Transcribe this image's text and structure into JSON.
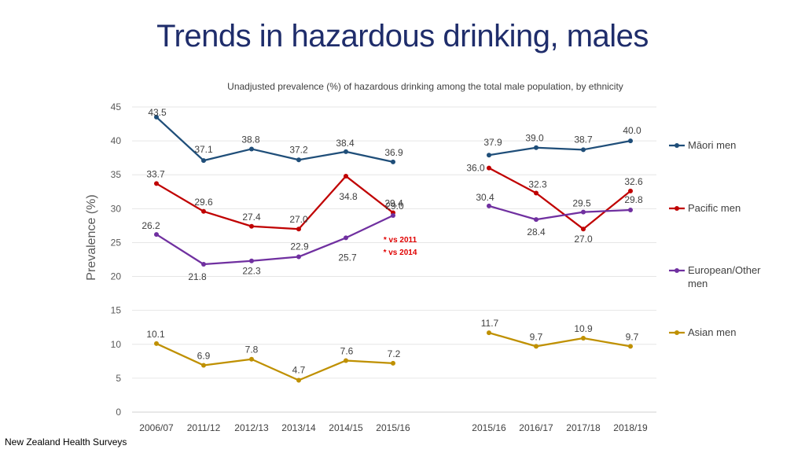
{
  "page_title": "Trends in hazardous drinking, males",
  "footer": "New Zealand Health Surveys",
  "chart_data": {
    "type": "line",
    "title": "Unadjusted prevalence (%) of hazardous drinking among the total male population, by ethnicity",
    "ylabel": "Prevalence (%)",
    "xlabel": "",
    "ylim": [
      0,
      45
    ],
    "yticks": [
      0,
      5,
      10,
      15,
      20,
      25,
      30,
      35,
      40,
      45
    ],
    "grid": true,
    "categories": [
      "2006/07",
      "2011/12",
      "2012/13",
      "2013/14",
      "2014/15",
      "2015/16",
      "2015/16",
      "2016/17",
      "2017/18",
      "2018/19"
    ],
    "segments": [
      [
        0,
        5
      ],
      [
        6,
        9
      ]
    ],
    "series": [
      {
        "name": "Māori men",
        "color": "#1f4e79",
        "values": [
          43.5,
          37.1,
          38.8,
          37.2,
          38.4,
          36.9,
          37.9,
          39.0,
          38.7,
          40.0
        ],
        "labels": [
          "43.5",
          "37.1",
          "38.8",
          "37.2",
          "38.4",
          "36.9",
          "37.9",
          "39.0",
          "38.7",
          "40.0"
        ]
      },
      {
        "name": "Pacific men",
        "color": "#c00000",
        "values": [
          33.7,
          29.6,
          27.4,
          27.0,
          34.8,
          29.4,
          36.0,
          32.3,
          27.0,
          32.6
        ],
        "labels": [
          "33.7",
          "29.6",
          "27.4",
          "27.0",
          "34.8",
          "29.4",
          "36.0",
          "32.3",
          "27.0",
          "32.6"
        ]
      },
      {
        "name": "European/Other men",
        "color": "#7030a0",
        "values": [
          26.2,
          21.8,
          22.3,
          22.9,
          25.7,
          29.0,
          30.4,
          28.4,
          29.5,
          29.8
        ],
        "labels": [
          "26.2",
          "21.8",
          "22.3",
          "22.9",
          "25.7",
          "29.0",
          "30.4",
          "28.4",
          "29.5",
          "29.8"
        ]
      },
      {
        "name": "Asian men",
        "color": "#bf9000",
        "values": [
          10.1,
          6.9,
          7.8,
          4.7,
          7.6,
          7.2,
          11.7,
          9.7,
          10.9,
          9.7
        ],
        "labels": [
          "10.1",
          "6.9",
          "7.8",
          "4.7",
          "7.6",
          "7.2",
          "11.7",
          "9.7",
          "10.9",
          "9.7"
        ]
      }
    ],
    "annotations": [
      "* vs 2011",
      "* vs 2014"
    ],
    "annotation_color": "#e00000",
    "legend_position": "right"
  }
}
